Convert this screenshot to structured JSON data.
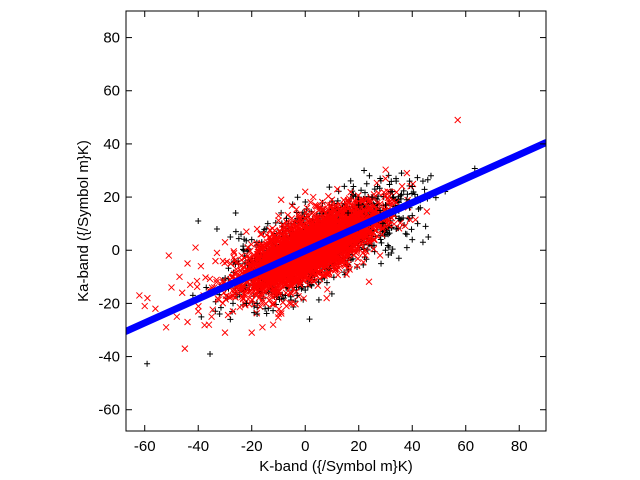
{
  "chart_data": {
    "type": "scatter",
    "title": "",
    "xlabel": "K-band ({/Symbol m}K)",
    "ylabel": "Ka-band ({/Symbol m}K)",
    "xlim": [
      -67,
      90
    ],
    "ylim": [
      -68,
      90
    ],
    "xticks": [
      -60,
      -40,
      -20,
      0,
      20,
      40,
      60,
      80
    ],
    "yticks": [
      -60,
      -40,
      -20,
      0,
      20,
      40,
      60,
      80
    ],
    "grid": false,
    "legend": "none",
    "series": [
      {
        "marker": "plus",
        "color": "#000000",
        "points": [
          [
            -40,
            11
          ],
          [
            -37,
            -14
          ],
          [
            22,
            30
          ],
          [
            24,
            28
          ],
          [
            28,
            27
          ],
          [
            34,
            26
          ],
          [
            36,
            29
          ],
          [
            32,
            22
          ],
          [
            40,
            24
          ],
          [
            41,
            21
          ],
          [
            38,
            19
          ],
          [
            36,
            16
          ],
          [
            42,
            20
          ],
          [
            35,
            12
          ],
          [
            42,
            10
          ],
          [
            34,
            8
          ],
          [
            40,
            4
          ],
          [
            46,
            5
          ],
          [
            44,
            3
          ],
          [
            30,
            0
          ],
          [
            35,
            -3
          ],
          [
            38,
            6
          ],
          [
            43,
            16
          ],
          [
            27,
            24
          ],
          [
            39,
            26
          ],
          [
            36,
            21
          ],
          [
            44,
            26
          ],
          [
            30,
            17
          ],
          [
            33,
            20
          ],
          [
            25,
            20
          ],
          [
            20,
            17
          ],
          [
            16,
            14
          ],
          [
            40,
            13
          ],
          [
            28,
            15
          ],
          [
            29,
            10
          ],
          [
            31,
            6
          ],
          [
            38,
            1
          ],
          [
            45,
            9
          ],
          [
            26,
            23
          ],
          [
            23,
            25
          ],
          [
            18,
            24
          ],
          [
            35,
            18
          ],
          [
            39,
            16
          ],
          [
            47,
            28
          ],
          [
            -8,
            -18
          ],
          [
            -3,
            -17
          ],
          [
            0,
            -15
          ],
          [
            -22,
            -20
          ],
          [
            -18,
            -20
          ],
          [
            -15,
            -22
          ],
          [
            -27,
            -20
          ],
          [
            -42,
            -17
          ],
          [
            -24,
            6
          ],
          [
            -33,
            8
          ],
          [
            -28,
            5
          ],
          [
            -20,
            4
          ],
          [
            -14,
            10
          ],
          [
            -7,
            12
          ],
          [
            5,
            -12
          ],
          [
            -28,
            -26
          ],
          [
            -32,
            -24
          ],
          [
            -18,
            -24
          ],
          [
            -26,
            14
          ]
        ]
      },
      {
        "marker": "x",
        "color": "#ff0000",
        "points": [
          [
            57,
            49
          ],
          [
            -45,
            -37
          ],
          [
            -62,
            -17
          ],
          [
            -60,
            -21
          ],
          [
            -59,
            -18
          ],
          [
            -51,
            -2
          ],
          [
            -47,
            -10
          ],
          [
            -43,
            -13
          ],
          [
            -46,
            -16
          ],
          [
            -52,
            -29
          ],
          [
            -48,
            -25
          ],
          [
            -44,
            -27
          ],
          [
            -40,
            -23
          ],
          [
            -36,
            -28
          ],
          [
            -35,
            -25
          ],
          [
            -39,
            -6
          ],
          [
            -44,
            -5
          ],
          [
            -41,
            1
          ],
          [
            -30,
            3
          ],
          [
            -22,
            7
          ],
          [
            -18,
            8
          ],
          [
            -10,
            13
          ],
          [
            -5,
            12
          ],
          [
            -9,
            19
          ],
          [
            0,
            22
          ],
          [
            3,
            20
          ],
          [
            2,
            18
          ],
          [
            10,
            19
          ],
          [
            38,
            29
          ],
          [
            30,
            27
          ],
          [
            12,
            23
          ],
          [
            16,
            18
          ],
          [
            -30,
            -31
          ],
          [
            -27,
            -23
          ],
          [
            -20,
            -31
          ],
          [
            -16,
            -29
          ],
          [
            -12,
            -28
          ],
          [
            -25,
            -16
          ],
          [
            -34,
            -14
          ],
          [
            -38,
            -17
          ],
          [
            -24,
            -6
          ],
          [
            -15,
            -2
          ],
          [
            -28,
            -11
          ],
          [
            -20,
            -10
          ],
          [
            -6,
            -8
          ],
          [
            5,
            -5
          ],
          [
            10,
            -3
          ],
          [
            14,
            2
          ],
          [
            24,
            4
          ],
          [
            20,
            6
          ],
          [
            28,
            12
          ],
          [
            34,
            18
          ],
          [
            -2,
            -13
          ],
          [
            -9,
            -23
          ],
          [
            -14,
            2
          ],
          [
            -5,
            4
          ],
          [
            -50,
            -14
          ],
          [
            8,
            -18
          ],
          [
            -33,
            -1
          ],
          [
            -56,
            -22
          ]
        ]
      },
      {
        "marker": "line",
        "color": "#0000ff",
        "points": [
          [
            -67,
            -30.5
          ],
          [
            90,
            40.5
          ]
        ]
      }
    ]
  }
}
